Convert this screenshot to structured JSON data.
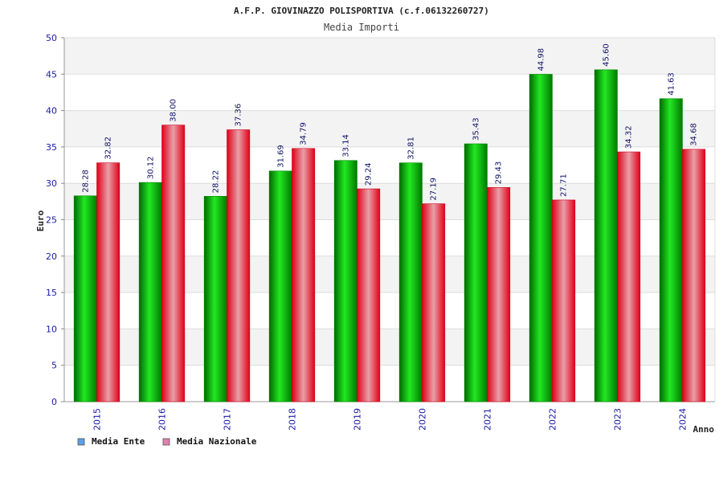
{
  "chart_data": {
    "type": "bar",
    "title": "A.F.P. GIOVINAZZO POLISPORTIVA (c.f.06132260727)",
    "subtitle": "Media Importi",
    "xlabel": "Anno",
    "ylabel": "Euro",
    "ylim": [
      0,
      50
    ],
    "yticks": [
      "0",
      "5",
      "10",
      "15",
      "20",
      "25",
      "30",
      "35",
      "40",
      "45",
      "50"
    ],
    "categories": [
      "2015",
      "2016",
      "2017",
      "2018",
      "2019",
      "2020",
      "2021",
      "2022",
      "2023",
      "2024"
    ],
    "series": [
      {
        "name": "Media Ente",
        "values": [
          28.28,
          30.12,
          28.22,
          31.69,
          33.14,
          32.81,
          35.43,
          44.98,
          45.6,
          41.63
        ],
        "labels": [
          "28.28",
          "30.12",
          "28.22",
          "31.69",
          "33.14",
          "32.81",
          "35.43",
          "44.98",
          "45.60",
          "41.63"
        ],
        "color": "#00b000",
        "legend_color": "#5aa0e6"
      },
      {
        "name": "Media Nazionale",
        "values": [
          32.82,
          38.0,
          37.36,
          34.79,
          29.24,
          27.19,
          29.43,
          27.71,
          34.32,
          34.68
        ],
        "labels": [
          "32.82",
          "38.00",
          "37.36",
          "34.79",
          "29.24",
          "27.19",
          "29.43",
          "27.71",
          "34.32",
          "34.68"
        ],
        "color": "#e8001c",
        "legend_color": "#e080b0"
      }
    ],
    "grid": true,
    "legend_position": "bottom-left"
  }
}
